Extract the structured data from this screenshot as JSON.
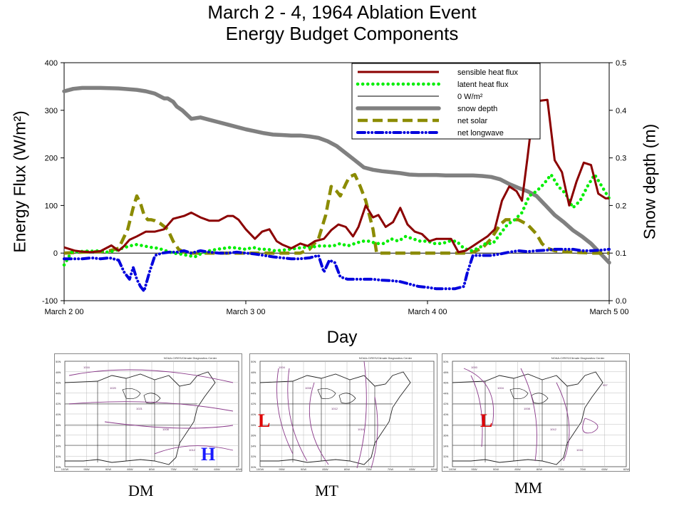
{
  "title": {
    "line1": "March 2 - 4, 1964  Ablation Event",
    "line2": "Energy Budget Components"
  },
  "chart_data": {
    "type": "line",
    "title": "March 2 - 4, 1964  Ablation Event Energy Budget Components",
    "xlabel": "Day",
    "ylabel": "Energy Flux (W/m²)",
    "y2label": "Snow depth (m)",
    "xlim": [
      0,
      3
    ],
    "ylim": [
      -100,
      400
    ],
    "y2lim": [
      0.0,
      0.5
    ],
    "x_ticks": [
      "March 2 00",
      "March 3 00",
      "March 4 00",
      "March 5 00"
    ],
    "y_ticks": [
      "-100",
      "0",
      "100",
      "200",
      "300",
      "400"
    ],
    "y2_ticks": [
      "0.0",
      "0.1",
      "0.2",
      "0.3",
      "0.4",
      "0.5"
    ],
    "legend_position": "top-right",
    "legend_labels": [
      "sensible heat flux",
      "latent heat flux",
      "0 W/m²",
      "snow depth",
      "net solar",
      "net longwave"
    ],
    "series": [
      {
        "name": "sensible heat flux",
        "axis": "left",
        "color": "#8b0000",
        "style": "solid",
        "x": [
          0.0,
          0.06,
          0.1,
          0.15,
          0.2,
          0.26,
          0.3,
          0.33,
          0.36,
          0.4,
          0.45,
          0.5,
          0.55,
          0.6,
          0.66,
          0.7,
          0.75,
          0.8,
          0.85,
          0.9,
          0.93,
          0.96,
          1.0,
          1.05,
          1.09,
          1.13,
          1.17,
          1.2,
          1.25,
          1.3,
          1.34,
          1.38,
          1.43,
          1.47,
          1.51,
          1.55,
          1.59,
          1.62,
          1.66,
          1.7,
          1.73,
          1.77,
          1.81,
          1.85,
          1.89,
          1.93,
          1.97,
          2.01,
          2.05,
          2.09,
          2.13,
          2.17,
          2.21,
          2.25,
          2.29,
          2.33,
          2.37,
          2.41,
          2.45,
          2.49,
          2.52,
          2.55,
          2.58,
          2.6,
          2.62,
          2.66,
          2.7,
          2.74,
          2.78,
          2.82,
          2.86,
          2.9,
          2.94,
          2.98,
          3.0
        ],
        "values": [
          12,
          5,
          3,
          2,
          4,
          16,
          5,
          15,
          28,
          35,
          45,
          45,
          50,
          72,
          78,
          85,
          75,
          68,
          68,
          78,
          78,
          70,
          50,
          30,
          45,
          50,
          25,
          18,
          10,
          20,
          15,
          25,
          30,
          48,
          60,
          55,
          35,
          55,
          100,
          75,
          80,
          55,
          65,
          95,
          60,
          45,
          40,
          25,
          30,
          30,
          30,
          2,
          5,
          15,
          25,
          35,
          50,
          110,
          140,
          130,
          110,
          200,
          295,
          310,
          320,
          322,
          195,
          170,
          100,
          150,
          190,
          185,
          125,
          115,
          115
        ]
      },
      {
        "name": "latent heat flux",
        "axis": "left",
        "color": "#00ee00",
        "style": "dotted",
        "x": [
          0.0,
          0.04,
          0.08,
          0.12,
          0.16,
          0.2,
          0.24,
          0.28,
          0.32,
          0.36,
          0.4,
          0.44,
          0.48,
          0.52,
          0.56,
          0.6,
          0.64,
          0.68,
          0.72,
          0.76,
          0.8,
          0.84,
          0.88,
          0.92,
          0.96,
          1.0,
          1.04,
          1.08,
          1.12,
          1.16,
          1.2,
          1.24,
          1.28,
          1.32,
          1.36,
          1.4,
          1.44,
          1.48,
          1.52,
          1.56,
          1.6,
          1.64,
          1.68,
          1.72,
          1.76,
          1.8,
          1.84,
          1.88,
          1.92,
          1.96,
          2.0,
          2.04,
          2.08,
          2.12,
          2.16,
          2.2,
          2.24,
          2.28,
          2.32,
          2.36,
          2.4,
          2.44,
          2.48,
          2.52,
          2.56,
          2.6,
          2.64,
          2.68,
          2.72,
          2.76,
          2.8,
          2.84,
          2.88,
          2.92,
          2.96,
          3.0
        ],
        "values": [
          -25,
          2,
          3,
          4,
          4,
          5,
          2,
          5,
          10,
          15,
          18,
          15,
          12,
          10,
          5,
          0,
          -2,
          -5,
          -8,
          0,
          5,
          8,
          10,
          12,
          10,
          8,
          12,
          8,
          8,
          5,
          6,
          8,
          10,
          12,
          12,
          15,
          15,
          15,
          20,
          15,
          20,
          25,
          25,
          20,
          20,
          30,
          25,
          35,
          30,
          25,
          25,
          20,
          20,
          25,
          25,
          10,
          5,
          10,
          20,
          20,
          40,
          60,
          70,
          85,
          120,
          130,
          145,
          165,
          140,
          125,
          95,
          110,
          140,
          165,
          140,
          115
        ]
      },
      {
        "name": "0 W/m²",
        "axis": "left",
        "color": "#000000",
        "style": "thin",
        "x": [
          0.0,
          3.0
        ],
        "values": [
          0,
          0
        ]
      },
      {
        "name": "snow depth",
        "axis": "right",
        "color": "#808080",
        "style": "thick",
        "x": [
          0.0,
          0.05,
          0.1,
          0.2,
          0.3,
          0.4,
          0.45,
          0.5,
          0.55,
          0.57,
          0.6,
          0.62,
          0.65,
          0.7,
          0.75,
          0.8,
          0.85,
          0.9,
          0.95,
          1.0,
          1.05,
          1.1,
          1.15,
          1.2,
          1.25,
          1.3,
          1.35,
          1.4,
          1.45,
          1.5,
          1.55,
          1.6,
          1.65,
          1.7,
          1.75,
          1.8,
          1.85,
          1.9,
          1.95,
          2.0,
          2.05,
          2.1,
          2.15,
          2.2,
          2.25,
          2.3,
          2.35,
          2.4,
          2.45,
          2.5,
          2.55,
          2.6,
          2.65,
          2.7,
          2.75,
          2.8,
          2.85,
          2.9,
          2.95,
          3.0
        ],
        "values": [
          0.44,
          0.445,
          0.447,
          0.447,
          0.446,
          0.443,
          0.44,
          0.435,
          0.425,
          0.425,
          0.418,
          0.408,
          0.4,
          0.382,
          0.385,
          0.38,
          0.375,
          0.37,
          0.365,
          0.36,
          0.356,
          0.352,
          0.349,
          0.348,
          0.347,
          0.347,
          0.345,
          0.342,
          0.335,
          0.325,
          0.31,
          0.295,
          0.28,
          0.275,
          0.272,
          0.27,
          0.268,
          0.265,
          0.264,
          0.264,
          0.264,
          0.263,
          0.263,
          0.263,
          0.263,
          0.262,
          0.26,
          0.255,
          0.245,
          0.237,
          0.23,
          0.22,
          0.2,
          0.18,
          0.165,
          0.148,
          0.135,
          0.12,
          0.1,
          0.08
        ]
      },
      {
        "name": "net solar",
        "axis": "left",
        "color": "#8b8b00",
        "style": "dashed",
        "x": [
          0.0,
          0.1,
          0.2,
          0.25,
          0.3,
          0.35,
          0.38,
          0.4,
          0.42,
          0.44,
          0.46,
          0.48,
          0.5,
          0.53,
          0.57,
          0.6,
          0.63,
          0.66,
          0.7,
          0.8,
          0.9,
          1.0,
          1.1,
          1.2,
          1.3,
          1.35,
          1.4,
          1.44,
          1.47,
          1.5,
          1.52,
          1.55,
          1.57,
          1.6,
          1.63,
          1.66,
          1.7,
          1.72,
          1.75,
          1.8,
          1.9,
          2.0,
          2.1,
          2.2,
          2.25,
          2.3,
          2.35,
          2.4,
          2.43,
          2.46,
          2.5,
          2.55,
          2.6,
          2.63,
          2.66,
          2.7,
          2.75,
          2.8,
          2.9,
          3.0
        ],
        "values": [
          0,
          2,
          3,
          5,
          10,
          50,
          95,
          120,
          105,
          80,
          70,
          70,
          68,
          62,
          50,
          25,
          8,
          2,
          0,
          0,
          0,
          0,
          0,
          0,
          0,
          8,
          30,
          80,
          140,
          130,
          120,
          145,
          160,
          165,
          140,
          110,
          50,
          0,
          0,
          0,
          0,
          0,
          0,
          0,
          2,
          10,
          30,
          60,
          70,
          70,
          70,
          60,
          40,
          20,
          10,
          5,
          3,
          2,
          0,
          0
        ]
      },
      {
        "name": "net longwave",
        "axis": "left",
        "color": "#0000dd",
        "style": "dash-dot",
        "x": [
          0.0,
          0.1,
          0.15,
          0.2,
          0.25,
          0.3,
          0.33,
          0.36,
          0.38,
          0.4,
          0.42,
          0.44,
          0.47,
          0.5,
          0.54,
          0.58,
          0.62,
          0.66,
          0.7,
          0.75,
          0.8,
          0.85,
          0.9,
          0.95,
          1.0,
          1.05,
          1.1,
          1.15,
          1.2,
          1.25,
          1.3,
          1.35,
          1.4,
          1.43,
          1.46,
          1.49,
          1.52,
          1.56,
          1.6,
          1.65,
          1.7,
          1.75,
          1.8,
          1.85,
          1.9,
          1.95,
          2.0,
          2.05,
          2.1,
          2.15,
          2.2,
          2.22,
          2.25,
          2.3,
          2.35,
          2.4,
          2.45,
          2.5,
          2.55,
          2.6,
          2.65,
          2.7,
          2.75,
          2.8,
          2.85,
          2.9,
          2.95,
          3.0
        ],
        "values": [
          -12,
          -12,
          -10,
          -12,
          -10,
          -15,
          -40,
          -55,
          -30,
          -55,
          -70,
          -80,
          -40,
          -5,
          0,
          2,
          2,
          5,
          0,
          5,
          2,
          0,
          0,
          2,
          0,
          -2,
          -5,
          -8,
          -10,
          -12,
          -12,
          -10,
          -5,
          -40,
          -15,
          -20,
          -50,
          -55,
          -55,
          -55,
          -55,
          -57,
          -58,
          -60,
          -65,
          -70,
          -72,
          -75,
          -75,
          -75,
          -70,
          -40,
          -5,
          -5,
          -5,
          -2,
          2,
          5,
          3,
          5,
          6,
          8,
          8,
          8,
          5,
          5,
          6,
          8
        ]
      }
    ]
  },
  "maps": [
    {
      "caption": "DM",
      "header": "NOAA-CIRES/Climate Diagnostics Center",
      "pressure_centers": [
        {
          "letter": "H",
          "color": "#1a1aff"
        }
      ],
      "contour_labels": [
        "1016",
        "1020",
        "1021",
        "1008",
        "1012"
      ],
      "lat_labels": [
        "50N",
        "48N",
        "46N",
        "44N",
        "42N",
        "40N",
        "38N",
        "36N",
        "34N",
        "32N",
        "30N"
      ],
      "lon_labels": [
        "100W",
        "95W",
        "90W",
        "85W",
        "80W",
        "75W",
        "70W",
        "65W",
        "60W"
      ]
    },
    {
      "caption": "MT",
      "header": "NOAA-CIRES/Climate Diagnostics Center",
      "pressure_centers": [
        {
          "letter": "L",
          "color": "#e00000"
        }
      ],
      "contour_labels": [
        "1004",
        "1008",
        "1012",
        "1016"
      ],
      "lat_labels": [
        "50N",
        "48N",
        "46N",
        "44N",
        "42N",
        "40N",
        "38N",
        "36N",
        "34N",
        "32N",
        "30N"
      ],
      "lon_labels": [
        "100W",
        "95W",
        "90W",
        "85W",
        "80W",
        "75W",
        "70W",
        "65W",
        "60W"
      ]
    },
    {
      "caption": "MM",
      "header": "NOAA-CIRES/Climate Diagnostics Center",
      "pressure_centers": [
        {
          "letter": "L",
          "color": "#e00000"
        }
      ],
      "contour_labels": [
        "1000",
        "1004",
        "1008",
        "1012",
        "1016",
        "997"
      ],
      "lat_labels": [
        "50N",
        "48N",
        "46N",
        "44N",
        "42N",
        "40N",
        "38N",
        "36N",
        "34N",
        "32N",
        "30N"
      ],
      "lon_labels": [
        "100W",
        "95W",
        "90W",
        "85W",
        "80W",
        "75W",
        "70W",
        "65W",
        "60W"
      ]
    }
  ]
}
